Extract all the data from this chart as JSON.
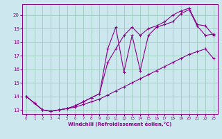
{
  "xlabel": "Windchill (Refroidissement éolien,°C)",
  "bg_color": "#cce8ee",
  "line_color": "#880088",
  "grid_color": "#99ccbb",
  "xlim": [
    -0.5,
    23.5
  ],
  "ylim": [
    12.7,
    20.8
  ],
  "yticks": [
    13,
    14,
    15,
    16,
    17,
    18,
    19,
    20
  ],
  "xticks": [
    0,
    1,
    2,
    3,
    4,
    5,
    6,
    7,
    8,
    9,
    10,
    11,
    12,
    13,
    14,
    15,
    16,
    17,
    18,
    19,
    20,
    21,
    22,
    23
  ],
  "line1_x": [
    0,
    1,
    2,
    3,
    4,
    5,
    6,
    7,
    8,
    9,
    10,
    11,
    12,
    13,
    14,
    15,
    16,
    17,
    18,
    19,
    20,
    21,
    22,
    23
  ],
  "line1_y": [
    14.0,
    13.5,
    13.0,
    12.9,
    13.0,
    13.1,
    13.2,
    13.4,
    13.6,
    13.8,
    14.1,
    14.4,
    14.7,
    15.0,
    15.3,
    15.6,
    15.9,
    16.2,
    16.5,
    16.8,
    17.1,
    17.3,
    17.5,
    16.8
  ],
  "line2_x": [
    0,
    1,
    2,
    3,
    4,
    5,
    6,
    7,
    8,
    9,
    10,
    11,
    12,
    13,
    14,
    15,
    16,
    17,
    18,
    19,
    20,
    21,
    22,
    23
  ],
  "line2_y": [
    14.0,
    13.5,
    13.0,
    12.9,
    13.0,
    13.1,
    13.3,
    13.6,
    13.9,
    14.2,
    17.5,
    19.1,
    15.8,
    18.5,
    15.9,
    18.5,
    19.1,
    19.3,
    19.5,
    20.1,
    20.4,
    19.2,
    18.5,
    18.6
  ],
  "line3_x": [
    0,
    1,
    2,
    3,
    4,
    5,
    6,
    7,
    8,
    9,
    10,
    11,
    12,
    13,
    14,
    15,
    16,
    17,
    18,
    19,
    20,
    21,
    22,
    23
  ],
  "line3_y": [
    14.0,
    13.5,
    13.0,
    12.9,
    13.0,
    13.1,
    13.3,
    13.6,
    13.9,
    14.2,
    16.5,
    17.5,
    18.5,
    19.1,
    18.5,
    19.0,
    19.2,
    19.5,
    20.0,
    20.3,
    20.5,
    19.3,
    19.2,
    18.5
  ]
}
